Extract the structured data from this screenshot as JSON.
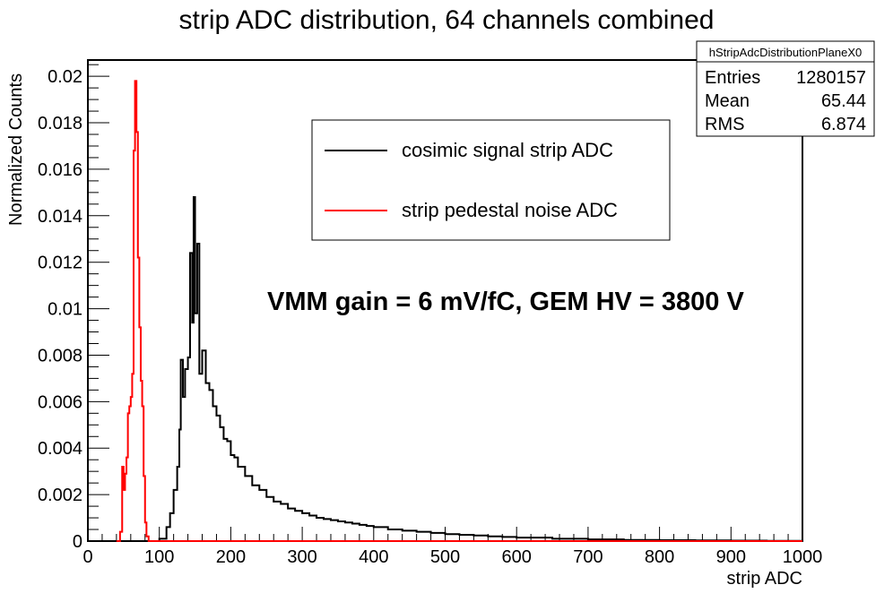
{
  "chart_data": {
    "type": "line",
    "title": "strip ADC distribution, 64 channels combined",
    "xlabel": "strip ADC",
    "ylabel": "Normalized Counts",
    "xlim": [
      0,
      1000
    ],
    "ylim": [
      0,
      0.0207
    ],
    "x_ticks": [
      0,
      100,
      200,
      300,
      400,
      500,
      600,
      700,
      800,
      900,
      1000
    ],
    "y_ticks": [
      0,
      0.002,
      0.004,
      0.006,
      0.008,
      0.01,
      0.012,
      0.014,
      0.016,
      0.018,
      0.02
    ],
    "y_tick_labels": [
      "0",
      "0.002",
      "0.004",
      "0.006",
      "0.008",
      "0.01",
      "0.012",
      "0.014",
      "0.016",
      "0.018",
      "0.02"
    ],
    "grid": false,
    "legend_position": "top-center",
    "annotation": "VMM gain = 6 mV/fC, GEM HV = 3800 V",
    "stats_box": {
      "name": "hStripAdcDistributionPlaneX0",
      "rows": [
        {
          "label": "Entries",
          "value": "1280157"
        },
        {
          "label": "Mean",
          "value": "65.44"
        },
        {
          "label": "RMS",
          "value": "6.874"
        }
      ]
    },
    "series": [
      {
        "name": "cosimic signal strip ADC",
        "color": "#000000",
        "x": [
          80,
          100,
          110,
          115,
          120,
          125,
          128,
          130,
          133,
          136,
          140,
          143,
          146,
          148,
          150,
          153,
          156,
          160,
          165,
          170,
          175,
          180,
          185,
          190,
          195,
          200,
          205,
          210,
          220,
          230,
          240,
          250,
          260,
          270,
          280,
          290,
          300,
          310,
          320,
          330,
          340,
          350,
          360,
          370,
          380,
          390,
          400,
          420,
          440,
          460,
          480,
          500,
          520,
          540,
          560,
          580,
          600,
          650,
          700,
          750,
          800,
          850,
          900,
          950,
          1000
        ],
        "values": [
          0,
          0.0001,
          0.0006,
          0.0012,
          0.0022,
          0.0032,
          0.0048,
          0.0078,
          0.0062,
          0.0074,
          0.0079,
          0.0124,
          0.0094,
          0.0148,
          0.0098,
          0.0128,
          0.0072,
          0.0082,
          0.0068,
          0.0065,
          0.0058,
          0.0054,
          0.0049,
          0.0044,
          0.0043,
          0.0037,
          0.0036,
          0.0032,
          0.0028,
          0.0024,
          0.0022,
          0.0019,
          0.0017,
          0.0016,
          0.0014,
          0.0013,
          0.0012,
          0.0011,
          0.001,
          0.00095,
          0.0009,
          0.00085,
          0.0008,
          0.00075,
          0.0007,
          0.00065,
          0.0006,
          0.0005,
          0.00045,
          0.0004,
          0.00035,
          0.0003,
          0.00027,
          0.00024,
          0.0002,
          0.00018,
          0.00015,
          0.0001,
          7e-05,
          5e-05,
          4e-05,
          3e-05,
          2e-05,
          1e-05,
          1e-05
        ]
      },
      {
        "name": "strip pedestal noise ADC",
        "color": "#ff0000",
        "x": [
          40,
          45,
          48,
          50,
          52,
          54,
          56,
          58,
          60,
          62,
          64,
          66,
          68,
          70,
          72,
          74,
          76,
          78,
          80,
          82,
          85,
          1000
        ],
        "values": [
          0,
          0.0004,
          0.0032,
          0.0022,
          0.0029,
          0.0036,
          0.0055,
          0.0058,
          0.0062,
          0.0072,
          0.0168,
          0.0198,
          0.0176,
          0.0122,
          0.0092,
          0.0069,
          0.0058,
          0.0028,
          0.0008,
          0.0002,
          0,
          0
        ]
      }
    ]
  }
}
